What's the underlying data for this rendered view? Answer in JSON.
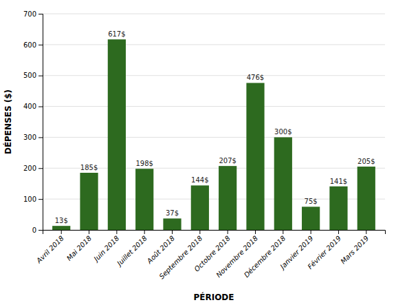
{
  "chart_data": {
    "type": "bar",
    "categories": [
      "Avril 2018",
      "Mai 2018",
      "Juin 2018",
      "Juillet 2018",
      "Août 2018",
      "Septembre 2018",
      "Octobre 2018",
      "Novembre 2018",
      "Décembre 2018",
      "Janvier 2019",
      "Février 2019",
      "Mars 2019"
    ],
    "values": [
      13,
      185,
      617,
      198,
      37,
      144,
      207,
      476,
      300,
      75,
      141,
      205
    ],
    "value_labels": [
      "13$",
      "185$",
      "617$",
      "198$",
      "37$",
      "144$",
      "207$",
      "476$",
      "300$",
      "75$",
      "141$",
      "205$"
    ],
    "data_labels": true,
    "color": "#2d6a1f",
    "xlabel": "PÉRIODE",
    "ylabel": "DÉPENSES ($)",
    "ylim": [
      0,
      700
    ],
    "yticks": [
      0,
      100,
      200,
      300,
      400,
      500,
      600,
      700
    ],
    "grid": true
  }
}
